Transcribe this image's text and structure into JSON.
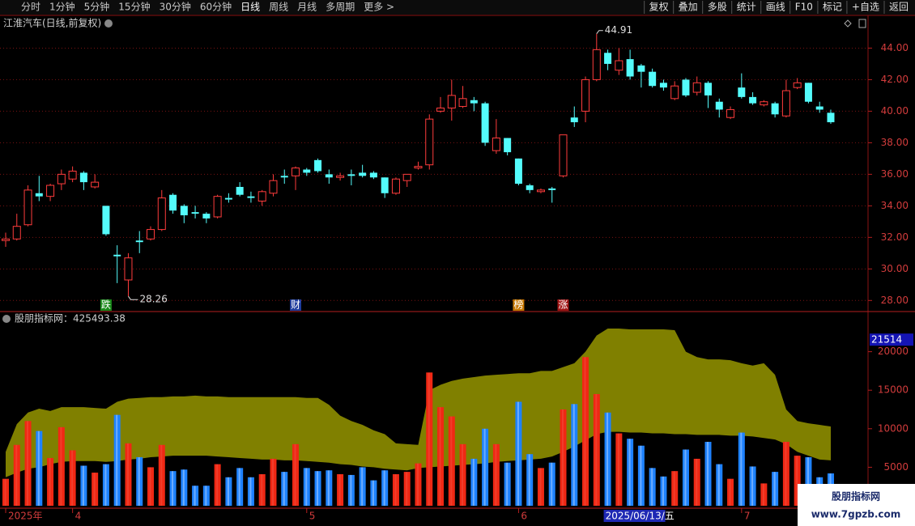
{
  "toolbar": {
    "left": [
      "分时",
      "1分钟",
      "5分钟",
      "15分钟",
      "30分钟",
      "60分钟",
      "日线",
      "周线",
      "月线",
      "多周期",
      "更多 >"
    ],
    "active_index": 6,
    "right": [
      "复权",
      "叠加",
      "多股",
      "统计",
      "画线",
      "F10",
      "标记",
      "+自选",
      "返回"
    ]
  },
  "chart_data": [
    {
      "type": "candlestick",
      "title": "江淮汽车(日线,前复权)",
      "open": [
        31.8,
        31.9,
        32.8,
        34.8,
        34.6,
        35.4,
        35.7,
        36.1,
        35.2,
        34.0,
        30.9,
        29.3,
        31.8,
        31.9,
        32.5,
        34.7,
        34.0,
        33.6,
        33.5,
        33.3,
        34.5,
        35.2,
        34.6,
        34.3,
        34.8,
        35.9,
        35.9,
        36.3,
        36.9,
        36.0,
        35.8,
        36.0,
        36.1,
        36.1,
        35.8,
        34.8,
        35.6,
        36.4,
        36.6,
        40.0,
        40.2,
        40.3,
        40.7,
        40.5,
        37.5,
        38.3,
        37.0,
        35.3,
        34.9,
        35.1,
        35.9,
        39.6,
        40.0,
        42.0,
        43.7,
        42.6,
        43.3,
        42.9,
        42.5,
        41.8,
        40.8,
        42.0,
        41.2,
        41.8,
        40.6,
        39.6,
        41.5,
        40.9,
        40.4,
        40.5,
        39.7,
        41.5,
        41.8,
        40.3,
        39.9
      ],
      "high": [
        32.3,
        33.5,
        35.3,
        35.9,
        35.4,
        36.3,
        36.5,
        36.2,
        36.0,
        34.0,
        31.5,
        31.0,
        32.4,
        32.7,
        35.0,
        34.8,
        34.1,
        34.0,
        33.6,
        34.7,
        34.8,
        35.5,
        34.9,
        35.0,
        36.0,
        36.3,
        36.5,
        36.4,
        37.0,
        36.3,
        36.1,
        36.3,
        36.6,
        36.2,
        35.8,
        35.8,
        36.0,
        36.8,
        39.8,
        40.9,
        42.0,
        41.6,
        40.9,
        40.6,
        39.5,
        38.3,
        37.0,
        35.4,
        35.1,
        35.2,
        38.5,
        40.3,
        42.2,
        44.91,
        43.9,
        44.0,
        43.9,
        43.0,
        42.7,
        42.0,
        41.9,
        42.1,
        42.2,
        41.9,
        40.8,
        40.3,
        42.4,
        41.2,
        40.7,
        40.6,
        42.0,
        42.1,
        41.8,
        40.6,
        40.1
      ],
      "low": [
        31.4,
        31.8,
        32.7,
        34.3,
        34.3,
        35.0,
        35.5,
        35.0,
        35.1,
        32.1,
        29.1,
        28.26,
        31.0,
        31.8,
        32.4,
        33.5,
        32.9,
        33.2,
        32.9,
        33.2,
        34.2,
        34.6,
        34.2,
        34.0,
        34.6,
        35.4,
        35.0,
        35.9,
        36.1,
        35.4,
        35.6,
        35.3,
        35.8,
        35.7,
        34.5,
        34.7,
        35.2,
        36.3,
        36.3,
        39.9,
        39.4,
        40.2,
        40.0,
        37.8,
        37.3,
        37.2,
        35.3,
        34.8,
        34.8,
        34.2,
        35.8,
        39.0,
        39.3,
        41.9,
        42.6,
        42.3,
        42.0,
        41.5,
        41.5,
        41.3,
        40.7,
        40.9,
        41.0,
        40.2,
        39.6,
        39.5,
        40.8,
        40.4,
        40.3,
        39.6,
        39.6,
        41.4,
        40.5,
        39.9,
        39.2
      ],
      "close": [
        31.9,
        32.7,
        35.0,
        34.6,
        35.3,
        36.0,
        36.2,
        35.5,
        35.5,
        32.2,
        30.8,
        30.7,
        31.7,
        32.5,
        34.5,
        33.7,
        33.4,
        33.5,
        33.2,
        34.6,
        34.4,
        34.7,
        34.5,
        34.9,
        35.6,
        35.8,
        36.4,
        36.1,
        36.2,
        35.8,
        35.9,
        35.9,
        35.9,
        35.8,
        34.8,
        35.7,
        36.0,
        36.5,
        39.5,
        40.2,
        41.0,
        40.8,
        40.5,
        38.0,
        38.3,
        37.4,
        35.4,
        35.0,
        35.0,
        35.0,
        38.5,
        39.3,
        42.0,
        43.9,
        43.0,
        43.2,
        42.2,
        42.5,
        41.6,
        41.5,
        41.6,
        41.0,
        41.8,
        41.0,
        40.1,
        40.1,
        40.9,
        40.5,
        40.6,
        39.8,
        41.3,
        41.8,
        40.6,
        40.1,
        39.3
      ],
      "categories": [
        "2025年",
        null,
        null,
        null,
        null,
        null,
        "4",
        null,
        null,
        null,
        null,
        null,
        null,
        null,
        null,
        null,
        null,
        null,
        null,
        null,
        null,
        null,
        null,
        null,
        null,
        null,
        null,
        "5",
        null,
        null,
        null,
        null,
        null,
        null,
        null,
        null,
        null,
        null,
        null,
        null,
        null,
        null,
        null,
        null,
        null,
        null,
        "6",
        null,
        null,
        null,
        null,
        null,
        null,
        null,
        null,
        null,
        null,
        null,
        null,
        null,
        null,
        null,
        null,
        null,
        null,
        null,
        "7",
        null,
        null,
        null,
        null,
        null,
        null,
        null,
        null
      ],
      "ylim": [
        27.4,
        45.1
      ],
      "yticks": [
        {
          "value": 28,
          "label": "28.00"
        },
        {
          "value": 30,
          "label": "30.00"
        },
        {
          "value": 32,
          "label": "32.00"
        },
        {
          "value": 34,
          "label": "34.00"
        },
        {
          "value": 36,
          "label": "36.00"
        },
        {
          "value": 38,
          "label": "38.00"
        },
        {
          "value": 40,
          "label": "40.00"
        },
        {
          "value": 42,
          "label": "42.00"
        },
        {
          "value": 44,
          "label": "44.00"
        }
      ],
      "grid": true,
      "up_color": "#ff3c3c",
      "down_color": "#54fcfc",
      "markers": [
        {
          "index": 9,
          "label": "跌",
          "color": "#1a8a1a"
        },
        {
          "index": 26,
          "label": "财",
          "color": "#1e3c9c"
        },
        {
          "index": 46,
          "label": "榜",
          "color": "#c87800"
        },
        {
          "index": 50,
          "label": "涨",
          "color": "#a01414"
        }
      ],
      "cursor": {
        "index": 54,
        "label": "2025/06/13/五"
      }
    },
    {
      "type": "bar",
      "title": "股朋指标网：425493.38",
      "values": [
        3500,
        7900,
        11000,
        9700,
        6200,
        10200,
        7200,
        5200,
        4300,
        5400,
        11800,
        8100,
        6300,
        5000,
        7900,
        4500,
        4700,
        2600,
        2600,
        5400,
        3700,
        4900,
        3700,
        4100,
        6100,
        4400,
        8000,
        4900,
        4500,
        4600,
        4100,
        4000,
        5000,
        3300,
        4600,
        4100,
        4400,
        5500,
        17300,
        12800,
        11600,
        8000,
        6100,
        10000,
        8000,
        5600,
        13500,
        6700,
        4900,
        5600,
        12500,
        13200,
        19300,
        14500,
        12100,
        9400,
        8700,
        7800,
        4900,
        3800,
        4500,
        7300,
        6100,
        8300,
        5400,
        3500,
        9500,
        5100,
        2900,
        4400,
        8300,
        6500,
        6300,
        3700,
        4200
      ],
      "band_upper": [
        7000,
        10600,
        12100,
        12600,
        12300,
        12800,
        12800,
        12800,
        12700,
        12600,
        13500,
        13900,
        14000,
        14100,
        14100,
        14200,
        14200,
        14300,
        14200,
        14200,
        14100,
        14100,
        14100,
        14100,
        14100,
        14100,
        14100,
        14000,
        14000,
        13100,
        11700,
        11000,
        10500,
        9800,
        9300,
        8100,
        8000,
        7900,
        15000,
        15700,
        16200,
        16500,
        16700,
        16900,
        17000,
        17100,
        17200,
        17200,
        17500,
        17500,
        18000,
        18500,
        20000,
        22100,
        23000,
        23000,
        22900,
        22900,
        22900,
        22900,
        22800,
        20000,
        19300,
        19000,
        19000,
        18900,
        18500,
        18200,
        18500,
        17000,
        12500,
        11000,
        10700,
        10500,
        10300
      ],
      "band_lower": [
        3700,
        4300,
        4800,
        5000,
        5400,
        5700,
        5800,
        5800,
        5800,
        5700,
        5800,
        6000,
        6100,
        6300,
        6400,
        6500,
        6500,
        6500,
        6500,
        6400,
        6300,
        6200,
        6100,
        6000,
        6000,
        5900,
        5900,
        5800,
        5700,
        5600,
        5400,
        5300,
        5100,
        5000,
        4800,
        4700,
        4600,
        4900,
        5000,
        5100,
        5200,
        5300,
        5400,
        5500,
        5700,
        5800,
        5900,
        6000,
        6100,
        6400,
        7000,
        7700,
        8500,
        9300,
        9600,
        9600,
        9500,
        9500,
        9400,
        9400,
        9300,
        9300,
        9200,
        9200,
        9200,
        9100,
        9100,
        9000,
        8800,
        8600,
        8000,
        7000,
        6500,
        6000,
        5900
      ],
      "band_color": "#808000",
      "up_color": "#f02814",
      "down_color": "#1e82ff",
      "ylim": [
        0,
        25000
      ],
      "yticks": [
        5000,
        10000,
        15000,
        20000
      ],
      "grid": false,
      "current_value": 21514
    }
  ],
  "watermark": {
    "title": "股朋指标网",
    "url": "www.7gpzb.com"
  }
}
